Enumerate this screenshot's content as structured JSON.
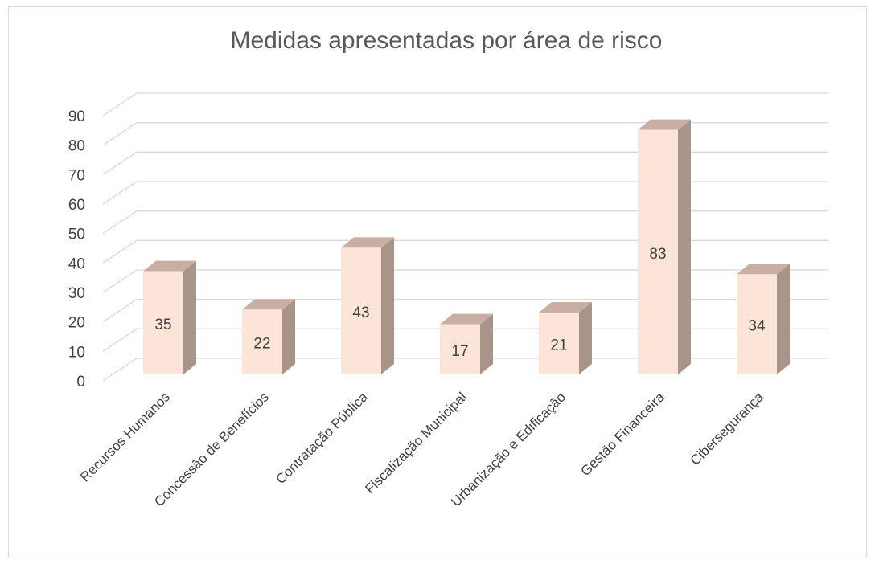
{
  "chart_data": {
    "type": "bar3d",
    "title": "Medidas apresentadas por área de risco",
    "categories": [
      "Recursos Humanos",
      "Concessão de Benefícios",
      "Contratação Pública",
      "Fiscalização Municipal",
      "Urbanização e Edificação",
      "Gestão Financeira",
      "Cibersegurança"
    ],
    "values": [
      35,
      22,
      43,
      17,
      21,
      83,
      34
    ],
    "color": "#fde4d8",
    "ylim": [
      0,
      90
    ],
    "yticks": [
      0,
      10,
      20,
      30,
      40,
      50,
      60,
      70,
      80,
      90
    ],
    "grid": true
  }
}
